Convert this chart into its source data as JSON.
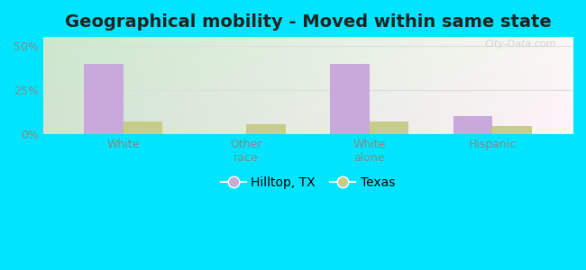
{
  "title": "Geographical mobility - Moved within same state",
  "categories": [
    "White",
    "Other\nrace",
    "White\nalone",
    "Hispanic"
  ],
  "hilltop_values": [
    40.0,
    0.0,
    40.0,
    10.0
  ],
  "texas_values": [
    7.0,
    5.5,
    7.0,
    4.5
  ],
  "hilltop_color": "#c9a8dc",
  "texas_color": "#c8cc8a",
  "background_outer": "#00e5ff",
  "grad_color_topleft": "#d4edda",
  "grad_color_topright": "#f0faf0",
  "grad_color_bottom": "#f5f5e8",
  "yticks": [
    0,
    25,
    50
  ],
  "ylabels": [
    "0%",
    "25%",
    "50%"
  ],
  "ylim": [
    0,
    55
  ],
  "bar_width": 0.32,
  "title_fontsize": 14,
  "tick_fontsize": 9,
  "legend_fontsize": 10,
  "grid_color": "#dddddd",
  "watermark": "City-Data.com"
}
